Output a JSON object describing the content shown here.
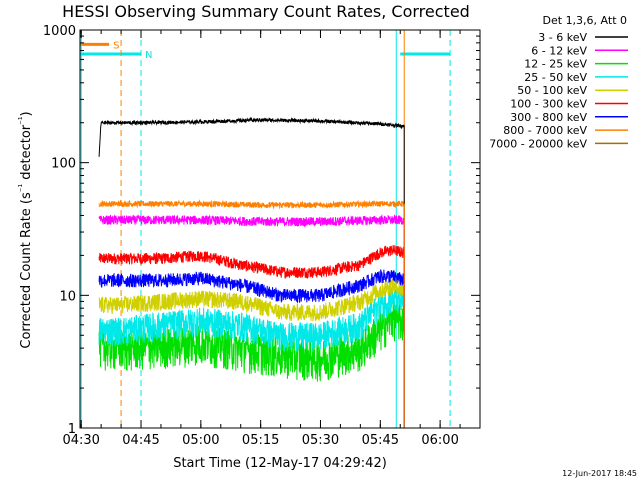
{
  "chart_data": {
    "type": "line",
    "title": "HESSI Observing Summary Count Rates, Corrected",
    "xlabel": "Start Time (12-May-17 04:29:42)",
    "ylabel": "Corrected Count Rate (s⁻¹ detector⁻¹)",
    "y_scale": "log",
    "ylim": [
      1,
      1000
    ],
    "xlim": [
      "04:29:42",
      "06:10:00"
    ],
    "y_ticks": [
      "1",
      "10",
      "100",
      "1000"
    ],
    "x_ticks": [
      "04:30",
      "04:45",
      "05:00",
      "05:15",
      "05:30",
      "05:45",
      "06:00"
    ],
    "legend_position": "top-right outside",
    "legend_title": "Det 1,3,6, Att 0",
    "date_stamp": "12-Jun-2017 18:45",
    "grid": false,
    "data_window": {
      "start": "04:34:30",
      "end": "05:51:00"
    },
    "series": [
      {
        "name": "3 - 6 keV",
        "color": "#000000",
        "points": [
          [
            "04:34:30",
            110
          ],
          [
            "04:35:00",
            200
          ],
          [
            "04:45:00",
            200
          ],
          [
            "05:00:00",
            203
          ],
          [
            "05:15:00",
            210
          ],
          [
            "05:30:00",
            206
          ],
          [
            "05:45:00",
            196
          ],
          [
            "05:50:00",
            190
          ],
          [
            "05:51:00",
            190
          ]
        ]
      },
      {
        "name": "6 - 12 keV",
        "color": "#ff00ff",
        "points": [
          [
            "04:34:30",
            37
          ],
          [
            "04:45:00",
            37
          ],
          [
            "05:00:00",
            37
          ],
          [
            "05:15:00",
            36
          ],
          [
            "05:30:00",
            36
          ],
          [
            "05:45:00",
            37
          ],
          [
            "05:51:00",
            37
          ]
        ]
      },
      {
        "name": "12 - 25 keV",
        "color": "#00e000",
        "points": [
          [
            "04:34:30",
            4.2
          ],
          [
            "04:40:00",
            4.0
          ],
          [
            "04:50:00",
            4.2
          ],
          [
            "05:00:00",
            4.5
          ],
          [
            "05:10:00",
            4.0
          ],
          [
            "05:20:00",
            3.6
          ],
          [
            "05:30:00",
            3.4
          ],
          [
            "05:40:00",
            4.0
          ],
          [
            "05:45:00",
            5.5
          ],
          [
            "05:48:00",
            7.0
          ],
          [
            "05:51:00",
            6.5
          ]
        ]
      },
      {
        "name": "25 - 50 keV",
        "color": "#00e8e8",
        "points": [
          [
            "04:34:30",
            5.5
          ],
          [
            "04:40:00",
            5.5
          ],
          [
            "04:50:00",
            6.0
          ],
          [
            "05:00:00",
            6.5
          ],
          [
            "05:10:00",
            6.0
          ],
          [
            "05:20:00",
            5.0
          ],
          [
            "05:30:00",
            5.0
          ],
          [
            "05:40:00",
            6.0
          ],
          [
            "05:45:00",
            8.5
          ],
          [
            "05:48:00",
            9.5
          ],
          [
            "05:51:00",
            9.0
          ]
        ]
      },
      {
        "name": "50 - 100 keV",
        "color": "#d0d000",
        "points": [
          [
            "04:34:30",
            8.5
          ],
          [
            "04:40:00",
            8.5
          ],
          [
            "04:50:00",
            9.0
          ],
          [
            "05:00:00",
            9.5
          ],
          [
            "05:10:00",
            9.0
          ],
          [
            "05:20:00",
            7.5
          ],
          [
            "05:30:00",
            7.5
          ],
          [
            "05:40:00",
            9.0
          ],
          [
            "05:45:00",
            11
          ],
          [
            "05:48:00",
            12
          ],
          [
            "05:51:00",
            11
          ]
        ]
      },
      {
        "name": "100 - 300 keV",
        "color": "#ff0000",
        "points": [
          [
            "04:34:30",
            19
          ],
          [
            "04:40:00",
            19
          ],
          [
            "04:50:00",
            19
          ],
          [
            "05:00:00",
            20
          ],
          [
            "05:10:00",
            17
          ],
          [
            "05:20:00",
            15
          ],
          [
            "05:30:00",
            15
          ],
          [
            "05:40:00",
            17
          ],
          [
            "05:45:00",
            21
          ],
          [
            "05:48:00",
            22
          ],
          [
            "05:51:00",
            21
          ]
        ]
      },
      {
        "name": "300 - 800 keV",
        "color": "#0000ff",
        "points": [
          [
            "04:34:30",
            13
          ],
          [
            "04:40:00",
            13
          ],
          [
            "04:50:00",
            13
          ],
          [
            "05:00:00",
            13.5
          ],
          [
            "05:10:00",
            12
          ],
          [
            "05:20:00",
            10
          ],
          [
            "05:30:00",
            10
          ],
          [
            "05:40:00",
            12
          ],
          [
            "05:45:00",
            14
          ],
          [
            "05:48:00",
            14
          ],
          [
            "05:51:00",
            13
          ]
        ]
      },
      {
        "name": "800 - 7000 keV",
        "color": "#ff8000",
        "points": [
          [
            "04:34:30",
            49
          ],
          [
            "04:45:00",
            49
          ],
          [
            "05:00:00",
            49
          ],
          [
            "05:15:00",
            48
          ],
          [
            "05:30:00",
            48
          ],
          [
            "05:45:00",
            49
          ],
          [
            "05:51:00",
            49
          ]
        ]
      },
      {
        "name": "7000 - 20000 keV",
        "color": "#a07000",
        "points": []
      }
    ],
    "annotations": [
      {
        "label": "S",
        "color": "#ff8000",
        "kind": "bar",
        "x_start": "04:29:42",
        "x_end": "04:37:00",
        "level": 780
      },
      {
        "label": "N",
        "color": "#00e8e8",
        "kind": "bar",
        "x_start": "04:29:42",
        "x_end": "04:45:00",
        "level": 660
      },
      {
        "label": "",
        "color": "#00e8e8",
        "kind": "bar",
        "x_start": "05:50:00",
        "x_end": "06:02:30",
        "level": 660
      },
      {
        "label": "",
        "color": "#ff8000",
        "kind": "vline-dashed",
        "x": "04:40:00"
      },
      {
        "label": "",
        "color": "#00e8e8",
        "kind": "vline-dashed",
        "x": "04:45:00"
      },
      {
        "label": "",
        "color": "#00e8e8",
        "kind": "vline-solid",
        "x": "04:30:00"
      },
      {
        "label": "",
        "color": "#00e8e8",
        "kind": "vline-solid",
        "x": "05:49:00"
      },
      {
        "label": "",
        "color": "#00e8e8",
        "kind": "vline-dashed",
        "x": "06:02:30"
      },
      {
        "label": "",
        "color": "#ff8000",
        "kind": "vline-solid",
        "x": "05:51:00"
      }
    ]
  }
}
